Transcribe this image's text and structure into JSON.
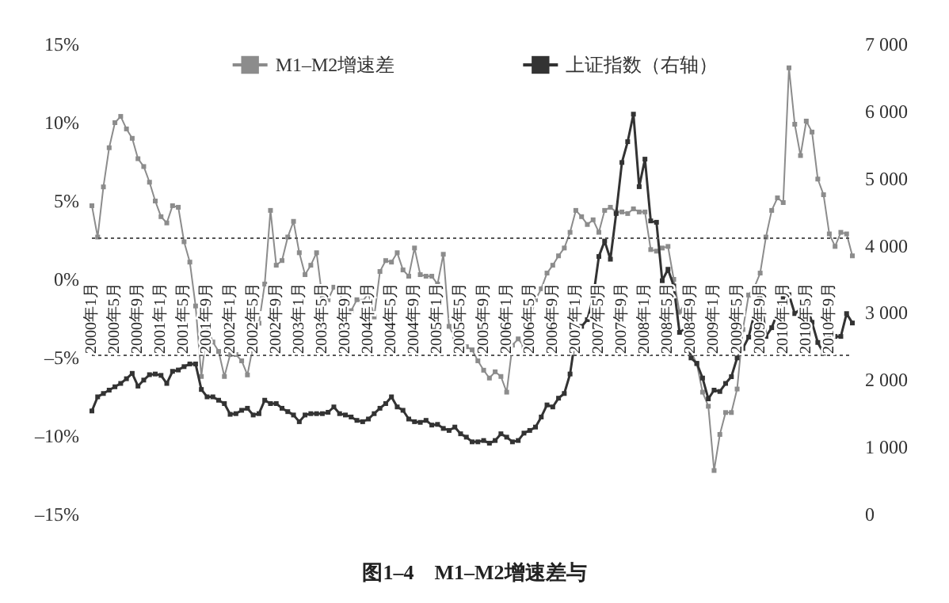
{
  "chart_data": {
    "type": "line",
    "title": "图1–4　M1–M2增速差与",
    "categories": [
      "2000年1月",
      null,
      null,
      null,
      "2000年5月",
      null,
      null,
      null,
      "2000年9月",
      null,
      null,
      null,
      "2001年1月",
      null,
      null,
      null,
      "2001年5月",
      null,
      null,
      null,
      "2001年9月",
      null,
      null,
      null,
      "2002年1月",
      null,
      null,
      null,
      "2002年5月",
      null,
      null,
      null,
      "2002年9月",
      null,
      null,
      null,
      "2003年1月",
      null,
      null,
      null,
      "2003年5月",
      null,
      null,
      null,
      "2003年9月",
      null,
      null,
      null,
      "2004年1月",
      null,
      null,
      null,
      "2004年5月",
      null,
      null,
      null,
      "2004年9月",
      null,
      null,
      null,
      "2005年1月",
      null,
      null,
      null,
      "2005年5月",
      null,
      null,
      null,
      "2005年9月",
      null,
      null,
      null,
      "2006年1月",
      null,
      null,
      null,
      "2006年5月",
      null,
      null,
      null,
      "2006年9月",
      null,
      null,
      null,
      "2007年1月",
      null,
      null,
      null,
      "2007年5月",
      null,
      null,
      null,
      "2007年9月",
      null,
      null,
      null,
      "2008年1月",
      null,
      null,
      null,
      "2008年5月",
      null,
      null,
      null,
      "2008年9月",
      null,
      null,
      null,
      "2009年1月",
      null,
      null,
      null,
      "2009年5月",
      null,
      null,
      null,
      "2009年9月",
      null,
      null,
      null,
      "2010年1月",
      null,
      null,
      null,
      "2010年5月",
      null,
      null,
      null,
      "2010年9月",
      null,
      null,
      null,
      null
    ],
    "series": [
      {
        "name": "M1–M2增速差",
        "color": "#8c8c8c",
        "values": [
          4.7,
          2.7,
          5.9,
          8.4,
          10.0,
          10.4,
          9.6,
          9.0,
          7.7,
          7.2,
          6.2,
          5.0,
          4.0,
          3.6,
          4.7,
          4.6,
          2.4,
          1.1,
          -1.7,
          -6.2,
          -3.0,
          -4.0,
          -4.6,
          -6.2,
          -4.8,
          -4.8,
          -5.2,
          -6.1,
          -4.2,
          -2.8,
          -0.3,
          4.4,
          0.9,
          1.2,
          2.7,
          3.7,
          1.7,
          0.3,
          0.9,
          1.7,
          -1.2,
          -1.3,
          -0.5,
          -0.6,
          -2.7,
          -2.0,
          -1.3,
          -1.4,
          -0.9,
          -2.4,
          0.5,
          1.2,
          1.1,
          1.7,
          0.6,
          0.2,
          2.0,
          0.3,
          0.2,
          0.2,
          -0.3,
          1.6,
          -3.0,
          -3.7,
          -3.7,
          -4.3,
          -4.5,
          -5.2,
          -5.8,
          -6.3,
          -5.9,
          -6.2,
          -7.2,
          -4.2,
          -3.8,
          -4.3,
          -2.6,
          -1.3,
          -0.6,
          0.4,
          0.9,
          1.5,
          2.0,
          3.0,
          4.4,
          4.0,
          3.5,
          3.8,
          3.0,
          4.4,
          4.6,
          4.3,
          4.3,
          4.2,
          4.5,
          4.3,
          4.3,
          1.9,
          1.8,
          2.0,
          2.1,
          0.0,
          -2.1,
          -1.5,
          -4.6,
          -5.4,
          -7.2,
          -8.1,
          -12.2,
          -9.9,
          -8.5,
          -8.5,
          -7.0,
          -3.2,
          -1.0,
          -0.5,
          0.4,
          2.7,
          4.4,
          5.2,
          4.9,
          13.5,
          9.9,
          7.9,
          10.1,
          9.4,
          6.4,
          5.4,
          2.9,
          2.1,
          3.0,
          2.9,
          1.5
        ]
      },
      {
        "name": "上证指数（右轴）",
        "axis": "y2",
        "color": "#333333",
        "values": [
          1540,
          1750,
          1800,
          1850,
          1900,
          1950,
          2020,
          2100,
          1910,
          2000,
          2080,
          2090,
          2070,
          1950,
          2130,
          2150,
          2200,
          2240,
          2240,
          1860,
          1750,
          1750,
          1700,
          1650,
          1490,
          1500,
          1550,
          1580,
          1480,
          1500,
          1700,
          1650,
          1650,
          1580,
          1530,
          1480,
          1380,
          1480,
          1500,
          1500,
          1500,
          1520,
          1600,
          1500,
          1480,
          1450,
          1400,
          1380,
          1420,
          1500,
          1580,
          1650,
          1750,
          1600,
          1550,
          1420,
          1380,
          1370,
          1400,
          1330,
          1340,
          1280,
          1250,
          1300,
          1200,
          1150,
          1080,
          1080,
          1100,
          1060,
          1100,
          1200,
          1150,
          1080,
          1100,
          1210,
          1250,
          1300,
          1450,
          1630,
          1600,
          1730,
          1800,
          2090,
          2670,
          2800,
          2900,
          3220,
          3840,
          4070,
          3800,
          4480,
          5240,
          5550,
          5960,
          4880,
          5290,
          4370,
          4350,
          3480,
          3650,
          3400,
          2710,
          2770,
          2330,
          2250,
          2030,
          1720,
          1850,
          1830,
          1950,
          2050,
          2330,
          2470,
          2640,
          2990,
          3360,
          2650,
          2780,
          3000,
          3220,
          3270,
          2990,
          3060,
          3130,
          2860,
          2560,
          2400,
          2640,
          2650,
          2650,
          2990,
          2850
        ]
      }
    ],
    "ylim": [
      -15,
      15
    ],
    "yticks": [
      {
        "value": -15,
        "label": "–15%"
      },
      {
        "value": -10,
        "label": "–10%"
      },
      {
        "value": -5,
        "label": "–5%"
      },
      {
        "value": 0,
        "label": "0%"
      },
      {
        "value": 5,
        "label": "5%"
      },
      {
        "value": 10,
        "label": "10%"
      },
      {
        "value": 15,
        "label": "15%"
      }
    ],
    "y2lim": [
      0,
      7000
    ],
    "y2ticks": [
      0,
      {
        "value": 1000,
        "label": "1 000"
      },
      {
        "value": 2000,
        "label": "2 000"
      },
      {
        "value": 3000,
        "label": "3 000"
      },
      {
        "value": 4000,
        "label": "4 000"
      },
      {
        "value": 5000,
        "label": "5 000"
      },
      {
        "value": 6000,
        "label": "6 000"
      },
      {
        "value": 7000,
        "label": "7 000"
      }
    ],
    "ref_lines": [
      {
        "axis": "y",
        "value": 2.7,
        "color": "#555555",
        "line_style": "dotted"
      },
      {
        "axis": "y",
        "value": -4.8,
        "color": "#555555",
        "line_style": "dotted"
      }
    ],
    "legend": "top",
    "marker": "square",
    "grid": false
  }
}
